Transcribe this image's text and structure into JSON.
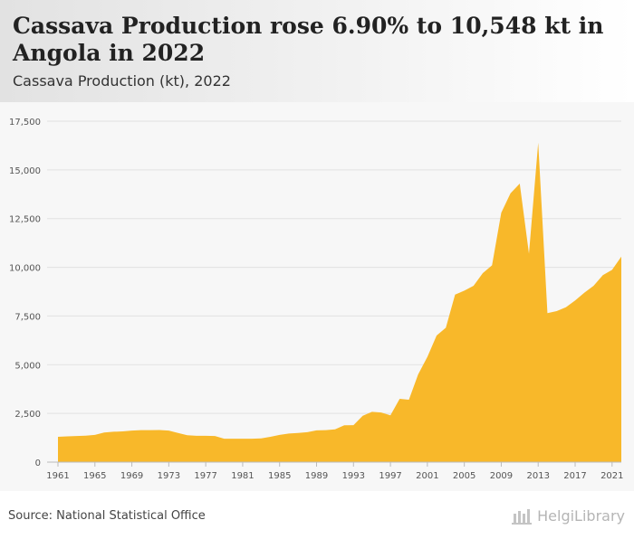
{
  "header": {
    "title": "Cassava Production rose 6.90% to 10,548 kt in Angola in 2022",
    "subtitle": "Cassava Production (kt), 2022"
  },
  "footer": {
    "source": "Source: National Statistical Office",
    "logo": "HelgiLibrary"
  },
  "colors": {
    "area": "#f8b82a",
    "grid": "#e2e2e2",
    "axis_text": "#555555"
  },
  "chart_data": {
    "type": "area",
    "title": "Cassava Production (kt), 2022",
    "xlabel": "",
    "ylabel": "",
    "ylim": [
      0,
      17500
    ],
    "y_ticks": [
      0,
      2500,
      5000,
      7500,
      10000,
      12500,
      15000,
      17500
    ],
    "y_tick_labels": [
      "0",
      "2,500",
      "5,000",
      "7,500",
      "10,000",
      "12,500",
      "15,000",
      "17,500"
    ],
    "x_tick_labels": [
      "1961",
      "1965",
      "1969",
      "1973",
      "1977",
      "1981",
      "1985",
      "1989",
      "1993",
      "1997",
      "2001",
      "2005",
      "2009",
      "2013",
      "2017",
      "2021"
    ],
    "x": [
      1961,
      1962,
      1963,
      1964,
      1965,
      1966,
      1967,
      1968,
      1969,
      1970,
      1971,
      1972,
      1973,
      1974,
      1975,
      1976,
      1977,
      1978,
      1979,
      1980,
      1981,
      1982,
      1983,
      1984,
      1985,
      1986,
      1987,
      1988,
      1989,
      1990,
      1991,
      1992,
      1993,
      1994,
      1995,
      1996,
      1997,
      1998,
      1999,
      2000,
      2001,
      2002,
      2003,
      2004,
      2005,
      2006,
      2007,
      2008,
      2009,
      2010,
      2011,
      2012,
      2013,
      2014,
      2015,
      2016,
      2017,
      2018,
      2019,
      2020,
      2021,
      2022
    ],
    "values": [
      1300,
      1320,
      1340,
      1360,
      1400,
      1520,
      1560,
      1580,
      1620,
      1640,
      1640,
      1650,
      1620,
      1500,
      1380,
      1350,
      1350,
      1340,
      1200,
      1200,
      1200,
      1200,
      1220,
      1300,
      1400,
      1470,
      1500,
      1540,
      1630,
      1640,
      1680,
      1890,
      1900,
      2380,
      2580,
      2550,
      2400,
      3250,
      3200,
      4500,
      5400,
      6500,
      6900,
      8600,
      8800,
      9050,
      9700,
      10100,
      12800,
      13800,
      14300,
      10700,
      16400,
      7650,
      7750,
      7950,
      8300,
      8700,
      9050,
      9600,
      9870,
      10548
    ]
  }
}
